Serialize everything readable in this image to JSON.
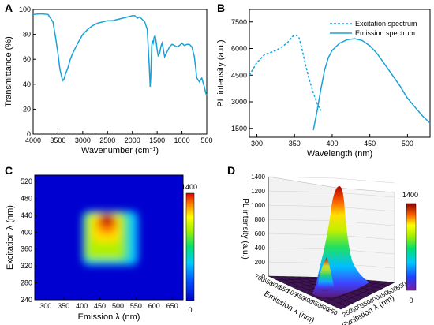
{
  "panel_letters": [
    "A",
    "B",
    "C",
    "D"
  ],
  "colors": {
    "curve": "#1aa1d9",
    "axis": "#000000"
  },
  "chart_data": [
    {
      "panel": "A",
      "type": "line",
      "xlabel": "Wavenumber (cm",
      "xlabel_sup": "−1",
      "xlabel_tail": ")",
      "ylabel": "Transmittance (%)",
      "xlim": [
        4000,
        500
      ],
      "ylim": [
        0,
        100
      ],
      "xticks": [
        4000,
        3500,
        3000,
        2500,
        2000,
        1500,
        1000,
        500
      ],
      "yticks": [
        0,
        20,
        40,
        60,
        80,
        100
      ],
      "series": [
        {
          "x": [
            4000,
            3850,
            3700,
            3600,
            3550,
            3500,
            3460,
            3420,
            3400,
            3380,
            3350,
            3320,
            3300,
            3250,
            3200,
            3100,
            3000,
            2900,
            2800,
            2700,
            2600,
            2500,
            2400,
            2300,
            2200,
            2100,
            2000,
            1950,
            1900,
            1850,
            1800,
            1750,
            1700,
            1680,
            1660,
            1640,
            1630,
            1620,
            1610,
            1600,
            1580,
            1560,
            1540,
            1520,
            1500,
            1480,
            1450,
            1420,
            1400,
            1380,
            1350,
            1300,
            1250,
            1200,
            1150,
            1100,
            1050,
            1000,
            950,
            900,
            850,
            800,
            750,
            700,
            650,
            600,
            550,
            520,
            500
          ],
          "y": [
            96,
            96.5,
            96,
            90,
            78,
            65,
            52,
            45,
            43,
            44,
            48,
            51,
            53,
            60,
            65,
            73,
            80,
            84,
            87,
            89,
            90,
            91,
            91,
            92,
            93,
            94,
            95,
            95,
            93,
            94,
            92,
            90,
            84,
            70,
            55,
            38,
            45,
            58,
            70,
            75,
            73,
            78,
            79,
            74,
            68,
            63,
            65,
            71,
            73,
            69,
            62,
            66,
            70,
            72,
            71,
            70,
            71,
            73,
            71,
            72,
            72,
            70,
            62,
            45,
            42,
            45,
            38,
            33,
            31
          ]
        }
      ]
    },
    {
      "panel": "B",
      "type": "line",
      "xlabel": "Wavelength (nm)",
      "ylabel": "PL intensity (a.u.)",
      "xlim": [
        290,
        530
      ],
      "ylim": [
        1000,
        8200
      ],
      "xticks": [
        300,
        350,
        400,
        450,
        500
      ],
      "yticks": [
        1500,
        3000,
        4500,
        6000,
        7500
      ],
      "legend_position": "top-right",
      "series": [
        {
          "name": "Excitation spectrum",
          "style": "dashed",
          "x": [
            290,
            300,
            310,
            320,
            330,
            340,
            348,
            352,
            356,
            360,
            365,
            370,
            375,
            380,
            385
          ],
          "y": [
            4500,
            5200,
            5650,
            5800,
            6000,
            6300,
            6700,
            6750,
            6600,
            5950,
            5000,
            4200,
            3500,
            2900,
            2500
          ]
        },
        {
          "name": "Emission spectrum",
          "style": "solid",
          "x": [
            375,
            380,
            385,
            390,
            395,
            400,
            410,
            420,
            430,
            440,
            450,
            460,
            470,
            480,
            490,
            500,
            510,
            520,
            530
          ],
          "y": [
            1400,
            2500,
            3700,
            4800,
            5500,
            5900,
            6300,
            6500,
            6550,
            6450,
            6150,
            5700,
            5100,
            4500,
            3900,
            3200,
            2700,
            2200,
            1800
          ]
        }
      ]
    },
    {
      "panel": "C",
      "type": "heatmap",
      "xlabel": "Emission λ (nm)",
      "ylabel": "Excitation λ (nm)",
      "xlim": [
        270,
        680
      ],
      "ylim": [
        240,
        535
      ],
      "xticks": [
        300,
        350,
        400,
        450,
        500,
        550,
        600,
        650
      ],
      "yticks": [
        240,
        280,
        320,
        360,
        400,
        440,
        480,
        520
      ],
      "colorbar": {
        "min": 0,
        "max": 1400,
        "min_label": "0",
        "max_label": "1400"
      },
      "peak": {
        "emission": 470,
        "excitation": 430,
        "intensity": 1400
      }
    },
    {
      "panel": "D",
      "type": "surface3d",
      "xlabel": "Excitation λ (nm)",
      "ylabel": "Emission λ (nm)",
      "zlabel": "PL intensity (a.u.)",
      "zticks": [
        0,
        200,
        400,
        600,
        800,
        1000,
        1200,
        1400
      ],
      "emission_ticks": [
        700,
        650,
        600,
        550,
        500,
        450,
        400,
        350,
        300,
        250
      ],
      "excitation_ticks": [
        250,
        300,
        350,
        400,
        450,
        500,
        550
      ],
      "colorbar": {
        "min": 0,
        "max": 1400,
        "min_label": "0",
        "max_label": "1400"
      },
      "peak": {
        "emission": 470,
        "excitation": 430,
        "intensity": 1400
      }
    }
  ]
}
